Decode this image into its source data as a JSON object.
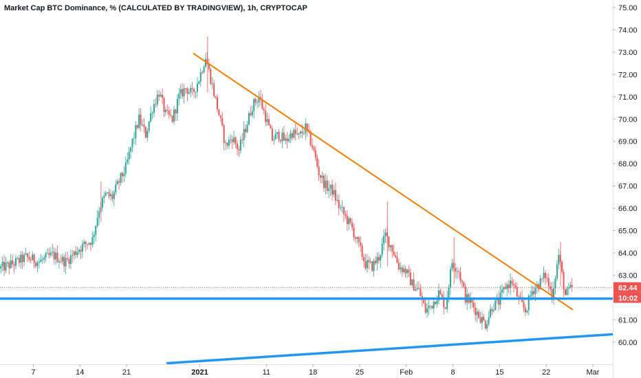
{
  "chart_data": {
    "type": "candlestick",
    "title": "Market Cap BTC Dominance, % (CALCULATED BY TRADINGVIEW), 1h, CRYPTOCAP",
    "ylim": [
      59.1,
      75.3
    ],
    "yticks": [
      60,
      61,
      62,
      63,
      64,
      65,
      66,
      67,
      68,
      69,
      70,
      71,
      72,
      73,
      74,
      75
    ],
    "ytick_labels": [
      "60.00",
      "61.00",
      "62.00",
      "63.00",
      "64.00",
      "65.00",
      "66.00",
      "67.00",
      "68.00",
      "69.00",
      "70.00",
      "71.00",
      "72.00",
      "73.00",
      "74.00",
      "75.00"
    ],
    "xlim": [
      "2020-12-02",
      "2021-03-04"
    ],
    "xticks": [
      {
        "date": "2020-12-07",
        "label": "7"
      },
      {
        "date": "2020-12-14",
        "label": "14"
      },
      {
        "date": "2020-12-21",
        "label": "21"
      },
      {
        "date": "2021-01-01",
        "label": "2021",
        "bold": true
      },
      {
        "date": "2021-01-11",
        "label": "11"
      },
      {
        "date": "2021-01-18",
        "label": "18"
      },
      {
        "date": "2021-01-25",
        "label": "25"
      },
      {
        "date": "2021-02-01",
        "label": "Feb"
      },
      {
        "date": "2021-02-08",
        "label": "8"
      },
      {
        "date": "2021-02-15",
        "label": "15"
      },
      {
        "date": "2021-02-22",
        "label": "22"
      },
      {
        "date": "2021-03-01",
        "label": "Mar"
      }
    ],
    "price_path": [
      [
        "2020-12-02",
        63.3
      ],
      [
        "2020-12-04",
        63.5
      ],
      [
        "2020-12-06",
        63.8
      ],
      [
        "2020-12-08",
        63.6
      ],
      [
        "2020-12-10",
        63.9
      ],
      [
        "2020-12-12",
        63.6
      ],
      [
        "2020-12-14",
        64.2
      ],
      [
        "2020-12-16",
        64.6
      ],
      [
        "2020-12-17",
        66.0
      ],
      [
        "2020-12-18",
        66.6
      ],
      [
        "2020-12-19",
        66.5
      ],
      [
        "2020-12-20",
        67.2
      ],
      [
        "2020-12-21",
        67.8
      ],
      [
        "2020-12-22",
        69.0
      ],
      [
        "2020-12-23",
        70.0
      ],
      [
        "2020-12-24",
        69.3
      ],
      [
        "2020-12-25",
        70.5
      ],
      [
        "2020-12-26",
        71.2
      ],
      [
        "2020-12-27",
        70.2
      ],
      [
        "2020-12-28",
        70.0
      ],
      [
        "2020-12-29",
        71.0
      ],
      [
        "2020-12-30",
        71.4
      ],
      [
        "2020-12-31",
        71.1
      ],
      [
        "2021-01-01",
        71.8
      ],
      [
        "2021-01-02",
        72.8
      ],
      [
        "2021-01-03",
        71.5
      ],
      [
        "2021-01-04",
        70.2
      ],
      [
        "2021-01-05",
        68.8
      ],
      [
        "2021-01-06",
        69.2
      ],
      [
        "2021-01-07",
        68.6
      ],
      [
        "2021-01-08",
        69.6
      ],
      [
        "2021-01-09",
        70.6
      ],
      [
        "2021-01-10",
        71.0
      ],
      [
        "2021-01-11",
        70.1
      ],
      [
        "2021-01-12",
        69.1
      ],
      [
        "2021-01-13",
        69.3
      ],
      [
        "2021-01-14",
        69.0
      ],
      [
        "2021-01-15",
        69.4
      ],
      [
        "2021-01-16",
        69.2
      ],
      [
        "2021-01-17",
        69.6
      ],
      [
        "2021-01-18",
        68.8
      ],
      [
        "2021-01-19",
        67.6
      ],
      [
        "2021-01-20",
        67.0
      ],
      [
        "2021-01-21",
        66.8
      ],
      [
        "2021-01-22",
        66.1
      ],
      [
        "2021-01-23",
        65.6
      ],
      [
        "2021-01-24",
        65.1
      ],
      [
        "2021-01-25",
        64.3
      ],
      [
        "2021-01-26",
        63.5
      ],
      [
        "2021-01-27",
        63.4
      ],
      [
        "2021-01-28",
        63.8
      ],
      [
        "2021-01-29",
        64.8
      ],
      [
        "2021-01-30",
        64.2
      ],
      [
        "2021-01-31",
        63.4
      ],
      [
        "2021-02-01",
        63.2
      ],
      [
        "2021-02-02",
        62.6
      ],
      [
        "2021-02-03",
        62.3
      ],
      [
        "2021-02-04",
        61.4
      ],
      [
        "2021-02-05",
        61.7
      ],
      [
        "2021-02-06",
        62.2
      ],
      [
        "2021-02-07",
        61.6
      ],
      [
        "2021-02-08",
        63.6
      ],
      [
        "2021-02-09",
        63.2
      ],
      [
        "2021-02-10",
        62.0
      ],
      [
        "2021-02-11",
        61.7
      ],
      [
        "2021-02-12",
        61.2
      ],
      [
        "2021-02-13",
        60.8
      ],
      [
        "2021-02-14",
        61.6
      ],
      [
        "2021-02-15",
        61.8
      ],
      [
        "2021-02-16",
        62.5
      ],
      [
        "2021-02-17",
        62.7
      ],
      [
        "2021-02-18",
        61.9
      ],
      [
        "2021-02-19",
        61.4
      ],
      [
        "2021-02-20",
        62.3
      ],
      [
        "2021-02-21",
        62.6
      ],
      [
        "2021-02-22",
        63.0
      ],
      [
        "2021-02-23",
        62.1
      ],
      [
        "2021-02-24",
        63.9
      ],
      [
        "2021-02-25",
        62.1
      ],
      [
        "2021-02-26",
        62.44
      ]
    ],
    "trendlines": [
      {
        "name": "descending-resistance",
        "color": "#f57c00",
        "from": [
          "2020-12-31",
          72.95
        ],
        "to": [
          "2021-02-26",
          61.45
        ]
      },
      {
        "name": "horizontal-support",
        "color": "#2196f3",
        "from": [
          "2020-12-02",
          61.95
        ],
        "to": [
          "2021-03-04",
          61.95
        ]
      },
      {
        "name": "ascending-support",
        "color": "#2196f3",
        "from": [
          "2020-12-27",
          59.05
        ],
        "to": [
          "2021-03-04",
          60.35
        ]
      }
    ],
    "price_line": {
      "value": 62.44,
      "label": "62.44",
      "color": "#ef5350"
    },
    "countdown": {
      "label": "10:02",
      "color": "#ef5350"
    },
    "colors": {
      "up": "#26a69a",
      "down": "#ef5350",
      "axis_text": "#131722",
      "axis_line": "#e0e3eb"
    }
  }
}
